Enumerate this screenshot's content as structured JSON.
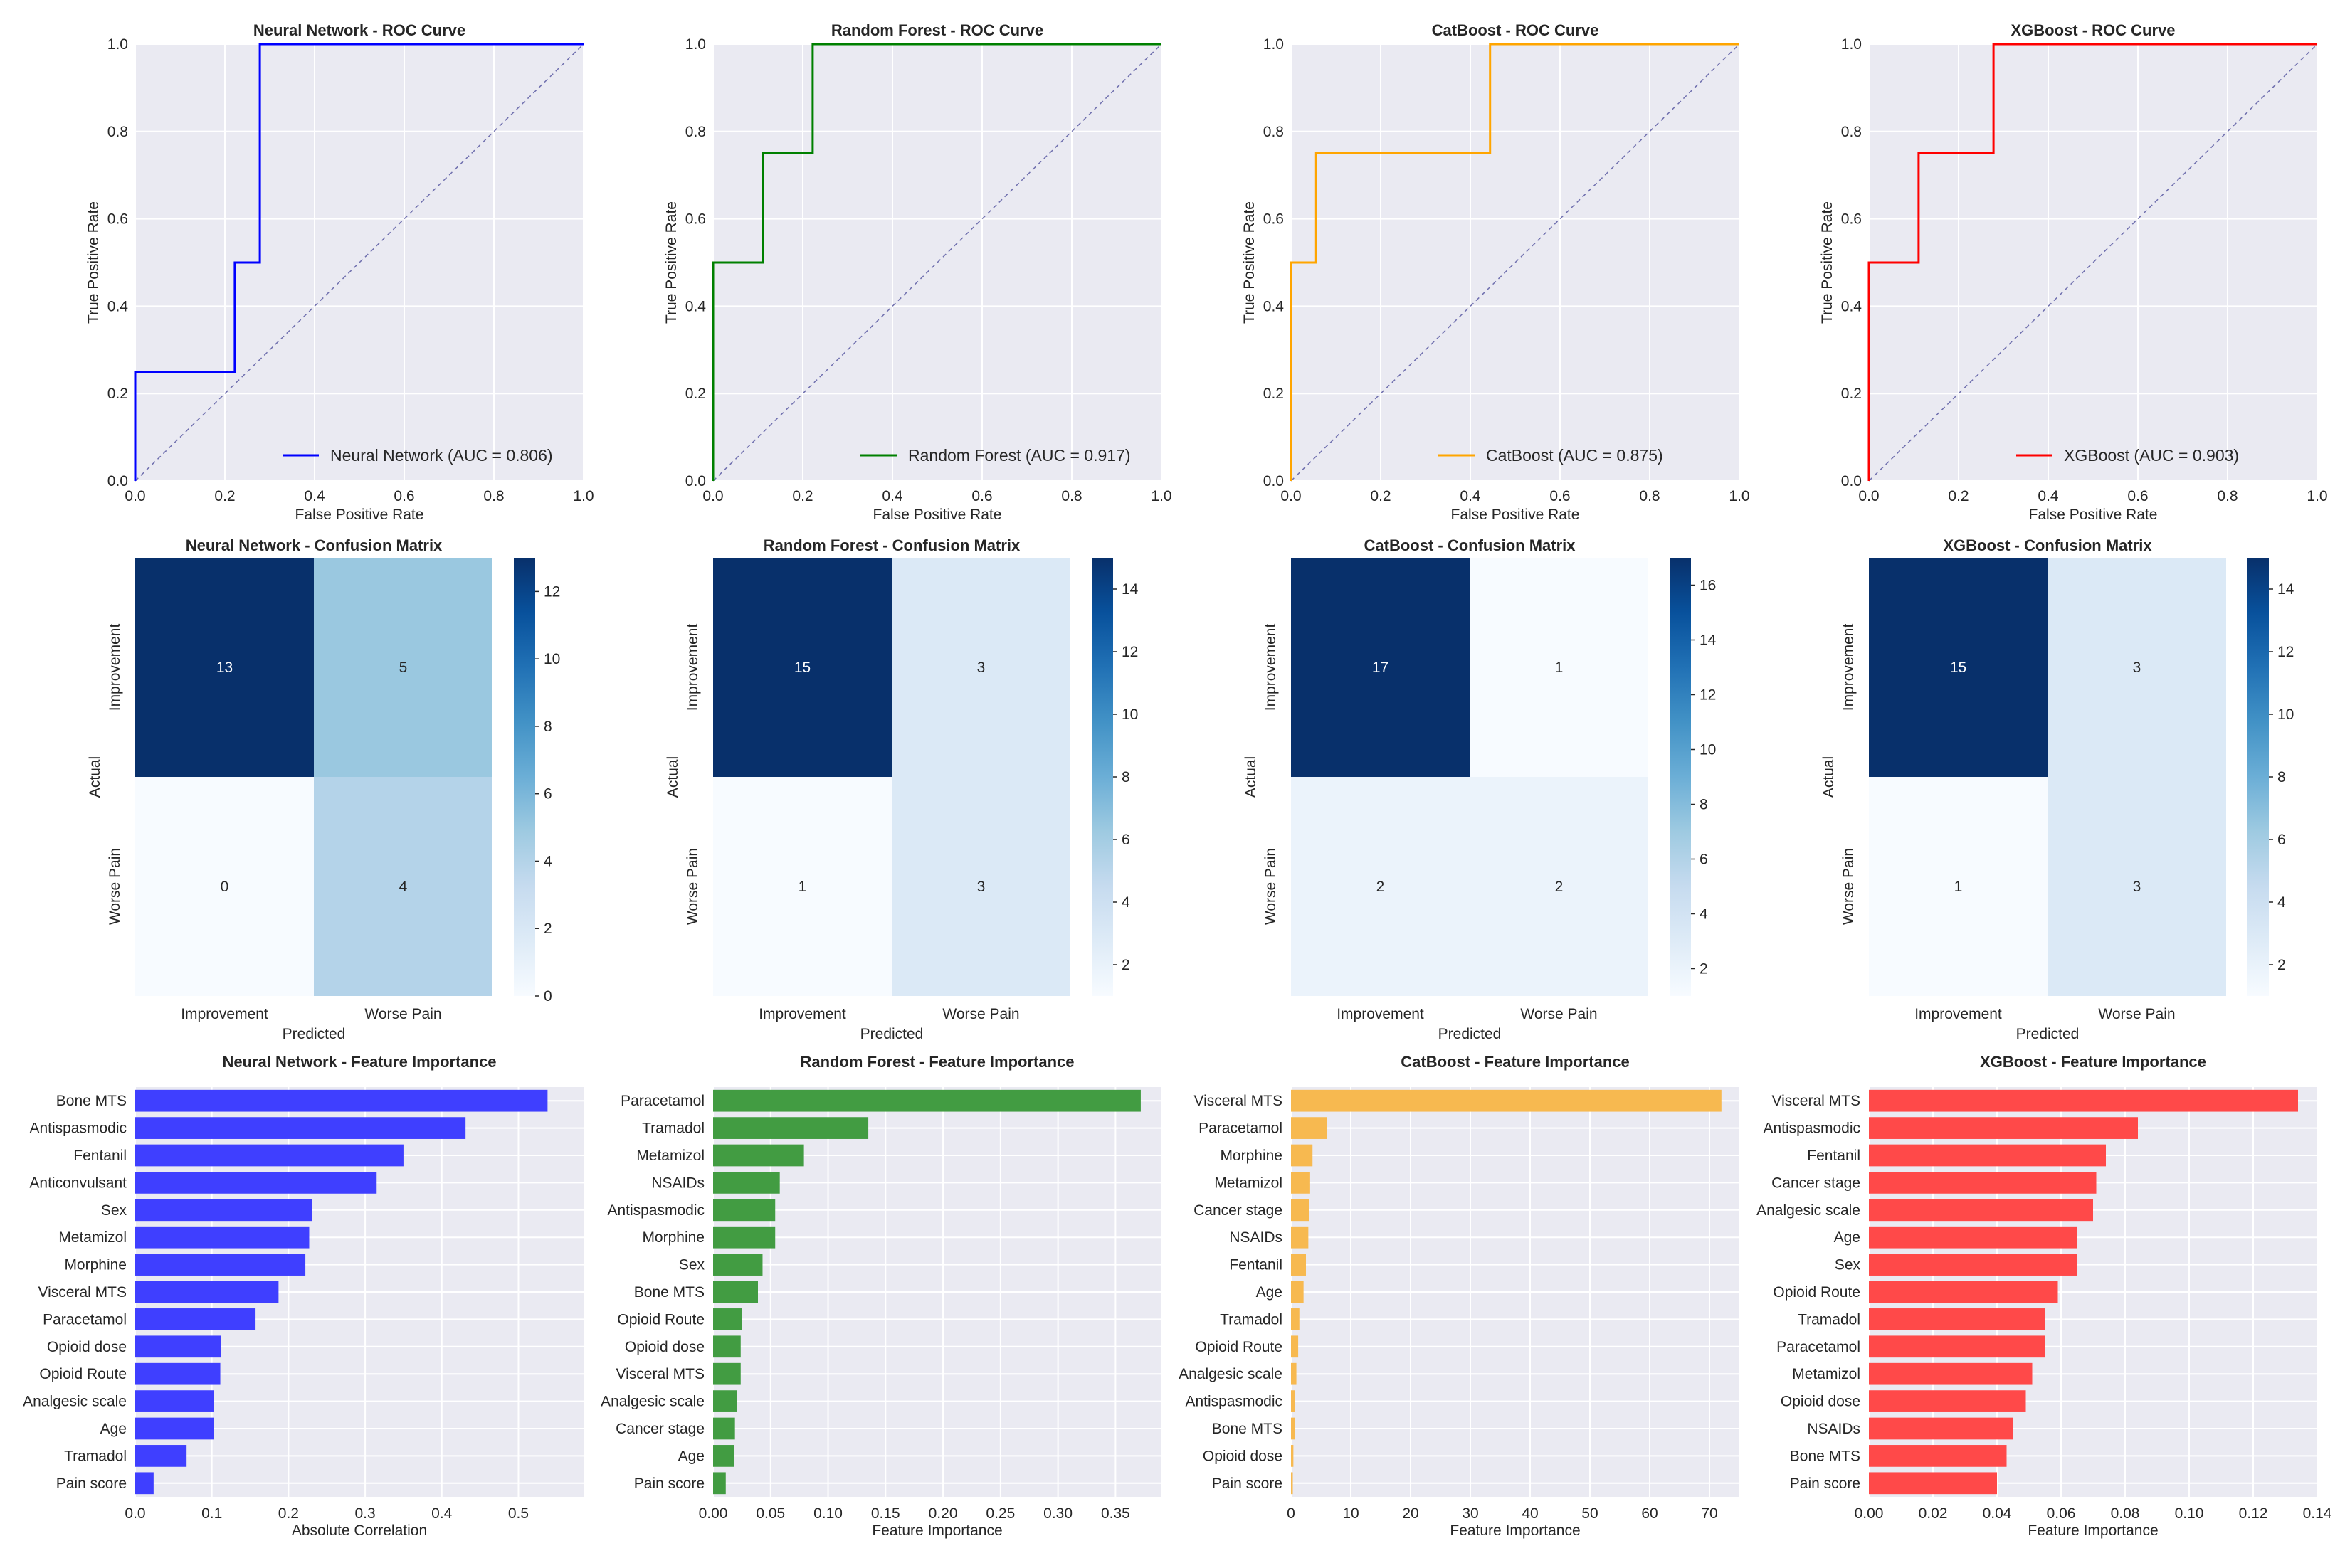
{
  "chart_data": [
    {
      "type": "line",
      "subtype": "roc",
      "model": "Neural Network",
      "color": "#0000ff",
      "title": "Neural Network - ROC Curve",
      "xlabel": "False Positive Rate",
      "ylabel": "True Positive Rate",
      "xlim": [
        0,
        1
      ],
      "ylim": [
        0,
        1
      ],
      "ticks": [
        "0.0",
        "0.2",
        "0.4",
        "0.6",
        "0.8",
        "1.0"
      ],
      "legend": "Neural Network (AUC = 0.806)",
      "legend_position": "lower right",
      "x": [
        0,
        0,
        0.222,
        0.222,
        0.278,
        0.278,
        1
      ],
      "y": [
        0,
        0.25,
        0.25,
        0.5,
        0.5,
        1,
        1
      ]
    },
    {
      "type": "line",
      "subtype": "roc",
      "model": "Random Forest",
      "color": "#008000",
      "title": "Random Forest - ROC Curve",
      "xlabel": "False Positive Rate",
      "ylabel": "True Positive Rate",
      "xlim": [
        0,
        1
      ],
      "ylim": [
        0,
        1
      ],
      "ticks": [
        "0.0",
        "0.2",
        "0.4",
        "0.6",
        "0.8",
        "1.0"
      ],
      "legend": "Random Forest (AUC = 0.917)",
      "legend_position": "lower right",
      "x": [
        0,
        0,
        0.111,
        0.111,
        0.222,
        0.222,
        1
      ],
      "y": [
        0,
        0.5,
        0.5,
        0.75,
        0.75,
        1,
        1
      ]
    },
    {
      "type": "line",
      "subtype": "roc",
      "model": "CatBoost",
      "color": "#ffa500",
      "title": "CatBoost - ROC Curve",
      "xlabel": "False Positive Rate",
      "ylabel": "True Positive Rate",
      "xlim": [
        0,
        1
      ],
      "ylim": [
        0,
        1
      ],
      "ticks": [
        "0.0",
        "0.2",
        "0.4",
        "0.6",
        "0.8",
        "1.0"
      ],
      "legend": "CatBoost (AUC = 0.875)",
      "legend_position": "lower right",
      "x": [
        0,
        0,
        0.056,
        0.056,
        0.444,
        0.444,
        1
      ],
      "y": [
        0,
        0.5,
        0.5,
        0.75,
        0.75,
        1,
        1
      ]
    },
    {
      "type": "line",
      "subtype": "roc",
      "model": "XGBoost",
      "color": "#ff0000",
      "title": "XGBoost - ROC Curve",
      "xlabel": "False Positive Rate",
      "ylabel": "True Positive Rate",
      "xlim": [
        0,
        1
      ],
      "ylim": [
        0,
        1
      ],
      "ticks": [
        "0.0",
        "0.2",
        "0.4",
        "0.6",
        "0.8",
        "1.0"
      ],
      "legend": "XGBoost (AUC = 0.903)",
      "legend_position": "lower right",
      "x": [
        0,
        0,
        0.111,
        0.111,
        0.278,
        0.278,
        1
      ],
      "y": [
        0,
        0.5,
        0.5,
        0.75,
        0.75,
        1,
        1
      ]
    },
    {
      "type": "heatmap",
      "subtype": "confusion",
      "model": "Neural Network",
      "title": "Neural Network - Confusion Matrix",
      "xlabel": "Predicted",
      "ylabel": "Actual",
      "labels": [
        "Improvement",
        "Worse Pain"
      ],
      "matrix": [
        [
          13,
          5
        ],
        [
          0,
          4
        ]
      ],
      "colorbar_range": [
        0,
        13
      ],
      "colorbar_ticks": [
        0,
        2,
        4,
        6,
        8,
        10,
        12
      ]
    },
    {
      "type": "heatmap",
      "subtype": "confusion",
      "model": "Random Forest",
      "title": "Random Forest - Confusion Matrix",
      "xlabel": "Predicted",
      "ylabel": "Actual",
      "labels": [
        "Improvement",
        "Worse Pain"
      ],
      "matrix": [
        [
          15,
          3
        ],
        [
          1,
          3
        ]
      ],
      "colorbar_range": [
        1,
        15
      ],
      "colorbar_ticks": [
        2,
        4,
        6,
        8,
        10,
        12,
        14
      ]
    },
    {
      "type": "heatmap",
      "subtype": "confusion",
      "model": "CatBoost",
      "title": "CatBoost - Confusion Matrix",
      "xlabel": "Predicted",
      "ylabel": "Actual",
      "labels": [
        "Improvement",
        "Worse Pain"
      ],
      "matrix": [
        [
          17,
          1
        ],
        [
          2,
          2
        ]
      ],
      "colorbar_range": [
        1,
        17
      ],
      "colorbar_ticks": [
        2,
        4,
        6,
        8,
        10,
        12,
        14,
        16
      ]
    },
    {
      "type": "heatmap",
      "subtype": "confusion",
      "model": "XGBoost",
      "title": "XGBoost - Confusion Matrix",
      "xlabel": "Predicted",
      "ylabel": "Actual",
      "labels": [
        "Improvement",
        "Worse Pain"
      ],
      "matrix": [
        [
          15,
          3
        ],
        [
          1,
          3
        ]
      ],
      "colorbar_range": [
        1,
        15
      ],
      "colorbar_ticks": [
        2,
        4,
        6,
        8,
        10,
        12,
        14
      ]
    },
    {
      "type": "bar",
      "orientation": "horizontal",
      "model": "Neural Network",
      "color": "#3b3bff",
      "title": "Neural Network - Feature Importance",
      "xlabel": "Absolute Correlation",
      "xlim": [
        0,
        0.585
      ],
      "ticks": [
        0,
        0.1,
        0.2,
        0.3,
        0.4,
        0.5
      ],
      "tick_labels": [
        "0.0",
        "0.1",
        "0.2",
        "0.3",
        "0.4",
        "0.5"
      ],
      "categories": [
        "Bone MTS",
        "Antispasmodic",
        "Fentanil",
        "Anticonvulsant",
        "Sex",
        "Metamizol",
        "Morphine",
        "Visceral MTS",
        "Paracetamol",
        "Opioid dose",
        "Opioid Route",
        "Analgesic scale",
        "Age",
        "Tramadol",
        "Pain score"
      ],
      "values": [
        0.538,
        0.431,
        0.35,
        0.315,
        0.231,
        0.227,
        0.222,
        0.187,
        0.157,
        0.112,
        0.111,
        0.103,
        0.103,
        0.067,
        0.024
      ]
    },
    {
      "type": "bar",
      "orientation": "horizontal",
      "model": "Random Forest",
      "color": "#3e9a3e",
      "title": "Random Forest - Feature Importance",
      "xlabel": "Feature Importance",
      "xlim": [
        0,
        0.39
      ],
      "ticks": [
        0,
        0.05,
        0.1,
        0.15,
        0.2,
        0.25,
        0.3,
        0.35
      ],
      "tick_labels": [
        "0.00",
        "0.05",
        "0.10",
        "0.15",
        "0.20",
        "0.25",
        "0.30",
        "0.35"
      ],
      "categories": [
        "Paracetamol",
        "Tramadol",
        "Metamizol",
        "NSAIDs",
        "Antispasmodic",
        "Morphine",
        "Sex",
        "Bone MTS",
        "Opioid Route",
        "Opioid dose",
        "Visceral MTS",
        "Analgesic scale",
        "Cancer stage",
        "Age",
        "Pain score"
      ],
      "values": [
        0.372,
        0.135,
        0.079,
        0.058,
        0.054,
        0.054,
        0.043,
        0.039,
        0.025,
        0.024,
        0.024,
        0.021,
        0.019,
        0.018,
        0.011
      ]
    },
    {
      "type": "bar",
      "orientation": "horizontal",
      "model": "CatBoost",
      "color": "#f7b84d",
      "title": "CatBoost - Feature Importance",
      "xlabel": "Feature Importance",
      "xlim": [
        0,
        75
      ],
      "ticks": [
        0,
        10,
        20,
        30,
        40,
        50,
        60,
        70
      ],
      "tick_labels": [
        "0",
        "10",
        "20",
        "30",
        "40",
        "50",
        "60",
        "70"
      ],
      "categories": [
        "Visceral MTS",
        "Paracetamol",
        "Morphine",
        "Metamizol",
        "Cancer stage",
        "NSAIDs",
        "Fentanil",
        "Age",
        "Tramadol",
        "Opioid Route",
        "Analgesic scale",
        "Antispasmodic",
        "Bone MTS",
        "Opioid dose",
        "Pain score"
      ],
      "values": [
        72.0,
        6.0,
        3.6,
        3.2,
        3.0,
        2.9,
        2.5,
        2.1,
        1.4,
        1.2,
        0.9,
        0.7,
        0.6,
        0.4,
        0.3
      ]
    },
    {
      "type": "bar",
      "orientation": "horizontal",
      "model": "XGBoost",
      "color": "#ff4545",
      "title": "XGBoost - Feature Importance",
      "xlabel": "Feature Importance",
      "xlim": [
        0,
        0.14
      ],
      "ticks": [
        0,
        0.02,
        0.04,
        0.06,
        0.08,
        0.1,
        0.12,
        0.14
      ],
      "tick_labels": [
        "0.00",
        "0.02",
        "0.04",
        "0.06",
        "0.08",
        "0.10",
        "0.12",
        "0.14"
      ],
      "categories": [
        "Visceral MTS",
        "Antispasmodic",
        "Fentanil",
        "Cancer stage",
        "Analgesic scale",
        "Age",
        "Sex",
        "Opioid Route",
        "Tramadol",
        "Paracetamol",
        "Metamizol",
        "Opioid dose",
        "NSAIDs",
        "Bone MTS",
        "Pain score"
      ],
      "values": [
        0.134,
        0.084,
        0.074,
        0.071,
        0.07,
        0.065,
        0.065,
        0.059,
        0.055,
        0.055,
        0.051,
        0.049,
        0.045,
        0.043,
        0.04
      ]
    }
  ]
}
